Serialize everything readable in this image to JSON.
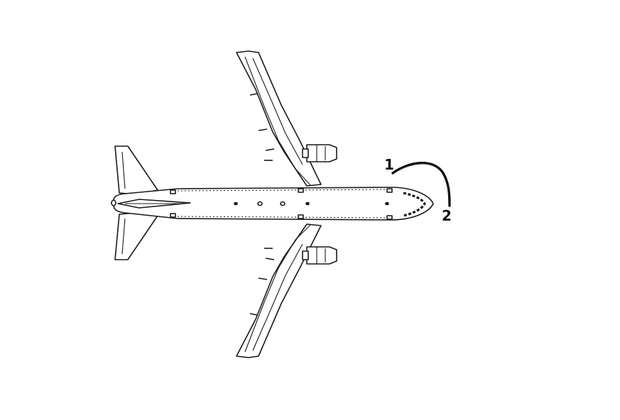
{
  "diagram": {
    "subject": "airplane-top-view",
    "annotations": [
      {
        "id": "point-1",
        "label": "1"
      },
      {
        "id": "point-2",
        "label": "2"
      }
    ],
    "colors": {
      "line": "#1a1a1a",
      "fill": "#ffffff",
      "arc": "#111111"
    }
  }
}
